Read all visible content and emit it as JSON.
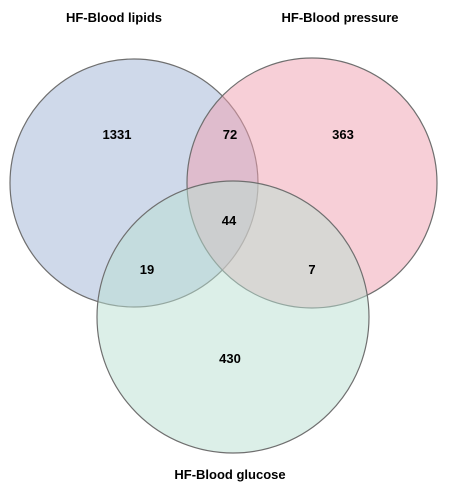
{
  "chart_data": {
    "type": "venn",
    "sets": [
      {
        "name": "HF-Blood lipids",
        "color": "#9fb3d6"
      },
      {
        "name": "HF-Blood pressure",
        "color": "#ef9fb0"
      },
      {
        "name": "HF-Blood glucose",
        "color": "#b9e0d2"
      }
    ],
    "regions": {
      "lipids_only": "1331",
      "pressure_only": "363",
      "glucose_only": "430",
      "lipids_pressure": "72",
      "lipids_glucose": "19",
      "pressure_glucose": "7",
      "all_three": "44"
    }
  }
}
